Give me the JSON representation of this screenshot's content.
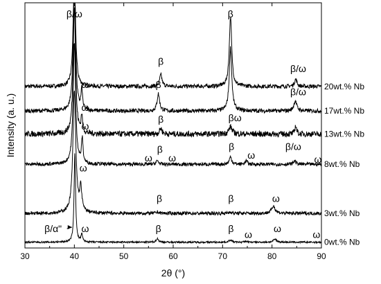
{
  "chart_data": {
    "type": "line",
    "title": "",
    "xlabel": "2θ (°)",
    "ylabel": "Intensity (a. u.)",
    "xlim": [
      30,
      90
    ],
    "xticks": [
      30,
      40,
      50,
      60,
      70,
      80,
      90
    ],
    "y_ticks_shown": false,
    "grid": false,
    "legend": "none",
    "series": [
      {
        "name": "20wt.% Nb",
        "baseline": 5.6,
        "noise": 0.07,
        "peaks": [
          [
            40.0,
            4.0,
            0.28
          ],
          [
            57.5,
            0.4,
            0.3
          ],
          [
            71.6,
            2.4,
            0.3
          ],
          [
            84.8,
            0.25,
            0.3
          ]
        ]
      },
      {
        "name": "17wt.% Nb",
        "baseline": 4.75,
        "noise": 0.07,
        "peaks": [
          [
            40.0,
            4.6,
            0.28
          ],
          [
            41.5,
            0.7,
            0.18
          ],
          [
            57.0,
            0.6,
            0.3
          ],
          [
            71.6,
            2.2,
            0.3
          ],
          [
            84.7,
            0.35,
            0.35
          ]
        ]
      },
      {
        "name": "13wt.% Nb",
        "baseline": 3.95,
        "noise": 0.1,
        "peaks": [
          [
            40.0,
            4.5,
            0.28
          ],
          [
            41.5,
            0.6,
            0.18
          ],
          [
            57.5,
            0.2,
            0.3
          ],
          [
            71.6,
            0.25,
            0.4
          ],
          [
            84.8,
            0.3,
            0.2
          ]
        ]
      },
      {
        "name": "8wt.% Nb",
        "baseline": 2.9,
        "noise": 0.06,
        "peaks": [
          [
            40.0,
            4.2,
            0.3
          ],
          [
            41.6,
            0.85,
            0.18
          ],
          [
            56.8,
            0.12,
            0.3
          ],
          [
            71.6,
            0.25,
            0.3
          ],
          [
            74.8,
            0.12,
            0.3
          ],
          [
            84.6,
            0.12,
            0.3
          ]
        ]
      },
      {
        "name": "3wt.% Nb",
        "baseline": 1.2,
        "noise": 0.06,
        "peaks": [
          [
            40.0,
            4.2,
            0.35
          ],
          [
            41.3,
            0.8,
            0.25
          ],
          [
            56.9,
            0.05,
            0.3
          ],
          [
            71.6,
            0.05,
            0.3
          ],
          [
            80.3,
            0.25,
            0.45
          ]
        ]
      },
      {
        "name": "0wt.% Nb",
        "baseline": 0.2,
        "noise": 0.03,
        "peaks": [
          [
            40.1,
            3.1,
            0.18
          ],
          [
            41.5,
            0.25,
            0.2
          ],
          [
            56.8,
            0.12,
            0.3
          ],
          [
            71.6,
            0.08,
            0.3
          ],
          [
            74.8,
            0.03,
            0.3
          ],
          [
            80.6,
            0.1,
            0.4
          ]
        ]
      }
    ],
    "ylim": [
      0,
      8.5
    ],
    "annotations": [
      {
        "text": "β/ω",
        "x": 40.0,
        "y": 8.0
      },
      {
        "text": "β",
        "x": 57.5,
        "y": 6.35
      },
      {
        "text": "β",
        "x": 71.6,
        "y": 8.0
      },
      {
        "text": "β/ω",
        "x": 85.3,
        "y": 6.1
      },
      {
        "text": "ω",
        "x": 42.2,
        "y": 5.55
      },
      {
        "text": "β",
        "x": 57.0,
        "y": 5.55
      },
      {
        "text": "β/ω",
        "x": 85.3,
        "y": 5.3
      },
      {
        "text": "ω",
        "x": 42.2,
        "y": 4.75
      },
      {
        "text": "β",
        "x": 57.5,
        "y": 4.35
      },
      {
        "text": "βω",
        "x": 72.5,
        "y": 4.4
      },
      {
        "text": "ω",
        "x": 42.2,
        "y": 4.1
      },
      {
        "text": "ω",
        "x": 55.0,
        "y": 3.0
      },
      {
        "text": "β",
        "x": 57.3,
        "y": 3.3
      },
      {
        "text": "ω",
        "x": 59.8,
        "y": 3.0
      },
      {
        "text": "β",
        "x": 71.8,
        "y": 3.4
      },
      {
        "text": "ω",
        "x": 75.8,
        "y": 3.1
      },
      {
        "text": "β/ω",
        "x": 84.3,
        "y": 3.4
      },
      {
        "text": "ω",
        "x": 89.3,
        "y": 2.95
      },
      {
        "text": "ω",
        "x": 41.8,
        "y": 2.65
      },
      {
        "text": "β",
        "x": 57.2,
        "y": 1.6
      },
      {
        "text": "β",
        "x": 71.7,
        "y": 1.6
      },
      {
        "text": "ω",
        "x": 80.8,
        "y": 1.6
      },
      {
        "text": "β/α\"",
        "x": 35.7,
        "y": 0.55,
        "arrow_to": [
          39.5,
          0.72
        ]
      },
      {
        "text": "ω",
        "x": 42.2,
        "y": 0.55
      },
      {
        "text": "β",
        "x": 57.0,
        "y": 0.55
      },
      {
        "text": "β",
        "x": 71.7,
        "y": 0.55
      },
      {
        "text": "ω",
        "x": 75.2,
        "y": 0.35
      },
      {
        "text": "ω",
        "x": 81.1,
        "y": 0.55
      },
      {
        "text": "ω",
        "x": 89.0,
        "y": 0.35
      }
    ]
  }
}
